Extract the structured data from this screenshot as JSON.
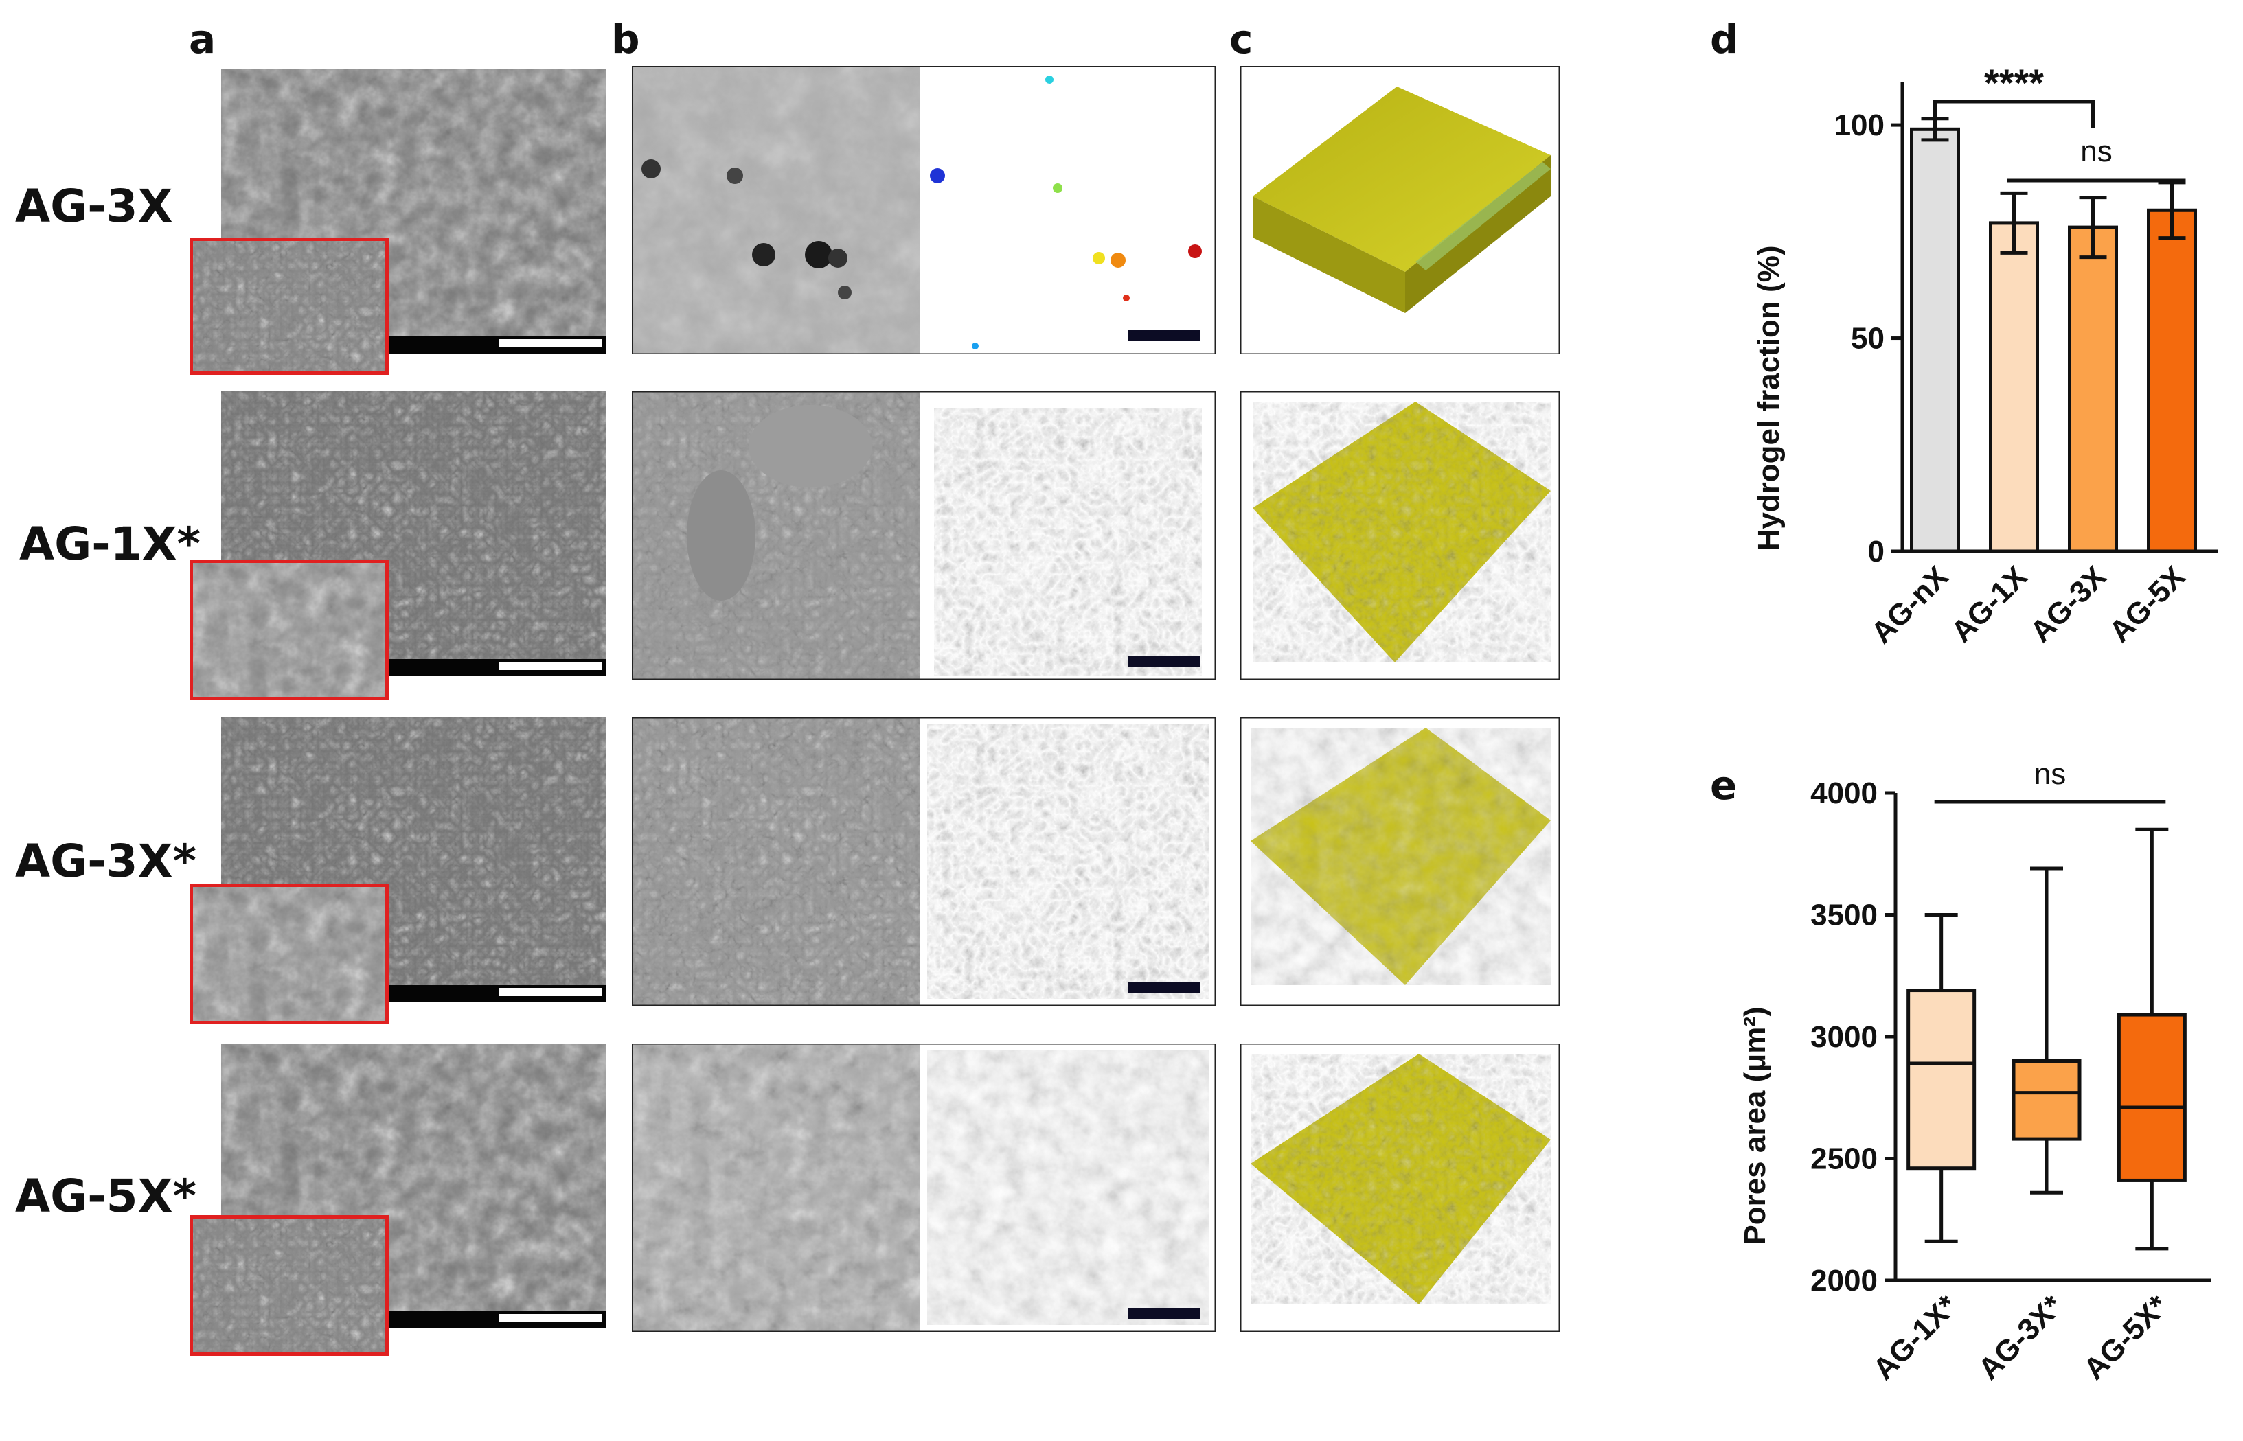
{
  "panels": {
    "a": "a",
    "b": "b",
    "c": "c",
    "d": "d",
    "e": "e"
  },
  "rows": [
    {
      "label": "AG-3X"
    },
    {
      "label": "AG-1X*"
    },
    {
      "label": "AG-3X*"
    },
    {
      "label": "AG-5X*"
    }
  ],
  "colors": {
    "nX": "#e0e0e0",
    "x1": "#fcdcbc",
    "x3": "#fba24a",
    "x5": "#f46a0d",
    "inset_border": "#e02020",
    "render_yellow": "#c9c214",
    "render_cyan": "#3aa6a8"
  },
  "chart_data": [
    {
      "type": "bar",
      "panel": "d",
      "categories": [
        "AG-nX",
        "AG-1X",
        "AG-3X",
        "AG-5X"
      ],
      "values": [
        99,
        77,
        76,
        80
      ],
      "errors": [
        2.5,
        7,
        7,
        6.5
      ],
      "ylabel": "Hydrogel fraction (%)",
      "ylim": [
        0,
        110
      ],
      "yticks": [
        "0",
        "50",
        "100"
      ],
      "annotations": [
        {
          "text": "****",
          "between": [
            "AG-nX",
            "AG-3X"
          ]
        },
        {
          "text": "ns",
          "between": [
            "AG-1X",
            "AG-5X"
          ]
        }
      ]
    },
    {
      "type": "box",
      "panel": "e",
      "categories": [
        "AG-1X*",
        "AG-3X*",
        "AG-5X*"
      ],
      "boxes": [
        {
          "min": 2160,
          "q1": 2460,
          "median": 2890,
          "q3": 3190,
          "max": 3500
        },
        {
          "min": 2360,
          "q1": 2580,
          "median": 2770,
          "q3": 2900,
          "max": 3690
        },
        {
          "min": 2130,
          "q1": 2410,
          "median": 2710,
          "q3": 3090,
          "max": 3850
        }
      ],
      "ylabel": "Pores area (μm²)",
      "ylim": [
        2000,
        4000
      ],
      "yticks": [
        "2000",
        "2500",
        "3000",
        "3500",
        "4000"
      ],
      "annotations": [
        {
          "text": "ns",
          "between": [
            "AG-1X*",
            "AG-5X*"
          ]
        }
      ]
    }
  ]
}
